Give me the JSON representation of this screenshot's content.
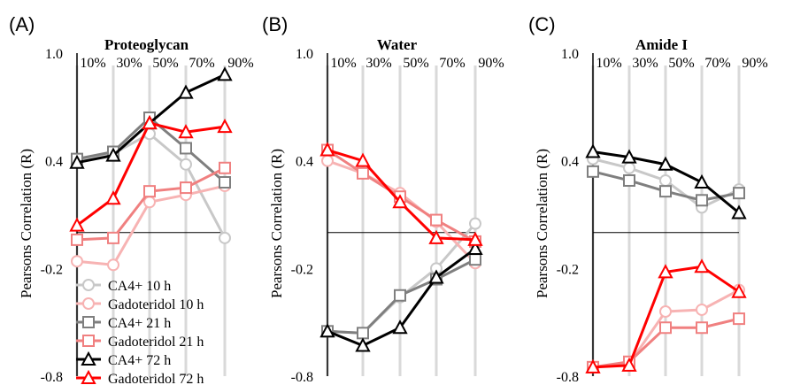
{
  "chart_data": [
    {
      "type": "line",
      "panel_label": "(A)",
      "title": "Proteoglycan",
      "ylabel": "Pearsons Correlation (R)",
      "ylim": [
        -0.8,
        1.0
      ],
      "yticks": [
        "1.0",
        "0.4",
        "-0.2",
        "-0.8"
      ],
      "xlabels": [
        "10%",
        "30%",
        "50%",
        "70%",
        "90%"
      ],
      "grid_vertical": true,
      "series": [
        {
          "name": "CA4+ 10 h",
          "values": [
            0.4,
            0.44,
            0.55,
            0.38,
            -0.03
          ]
        },
        {
          "name": "Gadoteridol 10 h",
          "values": [
            -0.16,
            -0.18,
            0.17,
            0.21,
            0.26
          ]
        },
        {
          "name": "CA4+ 21 h",
          "values": [
            0.41,
            0.45,
            0.64,
            0.47,
            0.28
          ]
        },
        {
          "name": "Gadoteridol 21 h",
          "values": [
            -0.04,
            -0.03,
            0.23,
            0.25,
            0.36
          ]
        },
        {
          "name": "CA4+ 72 h",
          "values": [
            0.39,
            0.43,
            0.61,
            0.78,
            0.88
          ]
        },
        {
          "name": "Gadoteridol 72 h",
          "values": [
            0.04,
            0.19,
            0.61,
            0.56,
            0.59
          ]
        }
      ]
    },
    {
      "type": "line",
      "panel_label": "(B)",
      "title": "Water",
      "ylabel": "Pearsons Correlation (R)",
      "ylim": [
        -0.8,
        1.0
      ],
      "yticks": [
        "1.0",
        "0.4",
        "-0.2",
        "-0.8"
      ],
      "xlabels": [
        "10%",
        "30%",
        "50%",
        "70%",
        "90%"
      ],
      "grid_vertical": true,
      "series": [
        {
          "name": "CA4+ 10 h",
          "values": [
            -0.55,
            -0.56,
            -0.36,
            -0.2,
            0.05
          ]
        },
        {
          "name": "Gadoteridol 10 h",
          "values": [
            0.4,
            0.33,
            0.22,
            0.06,
            -0.17
          ]
        },
        {
          "name": "CA4+ 21 h",
          "values": [
            -0.55,
            -0.56,
            -0.35,
            -0.26,
            -0.15
          ]
        },
        {
          "name": "Gadoteridol 21 h",
          "values": [
            0.46,
            0.33,
            0.2,
            0.07,
            -0.05
          ]
        },
        {
          "name": "CA4+ 72 h",
          "values": [
            -0.55,
            -0.63,
            -0.53,
            -0.25,
            -0.09
          ]
        },
        {
          "name": "Gadoteridol 72 h",
          "values": [
            0.46,
            0.4,
            0.17,
            -0.03,
            -0.04
          ]
        }
      ]
    },
    {
      "type": "line",
      "panel_label": "(C)",
      "title": "Amide I",
      "ylabel": "Pearsons Correlation (R)",
      "ylim": [
        -0.8,
        1.0
      ],
      "yticks": [
        "1.0",
        "0.4",
        "-0.2",
        "-0.8"
      ],
      "xlabels": [
        "10%",
        "30%",
        "50%",
        "70%",
        "90%"
      ],
      "grid_vertical": true,
      "series": [
        {
          "name": "CA4+ 10 h",
          "values": [
            0.41,
            0.36,
            0.29,
            0.14,
            0.24
          ]
        },
        {
          "name": "Gadoteridol 10 h",
          "values": [
            -0.75,
            -0.73,
            -0.44,
            -0.43,
            -0.32
          ]
        },
        {
          "name": "CA4+ 21 h",
          "values": [
            0.34,
            0.29,
            0.23,
            0.18,
            0.22
          ]
        },
        {
          "name": "Gadoteridol 21 h",
          "values": [
            -0.75,
            -0.72,
            -0.53,
            -0.53,
            -0.48
          ]
        },
        {
          "name": "CA4+ 72 h",
          "values": [
            0.45,
            0.42,
            0.38,
            0.28,
            0.11
          ]
        },
        {
          "name": "Gadoteridol 72 h",
          "values": [
            -0.75,
            -0.74,
            -0.22,
            -0.19,
            -0.33
          ]
        }
      ]
    }
  ],
  "legend": {
    "placement": "bottom-left of panel A",
    "entries": [
      "CA4+ 10 h",
      "Gadoteridol 10 h",
      "CA4+ 21 h",
      "Gadoteridol 21 h",
      "CA4+ 72 h",
      "Gadoteridol 72 h"
    ]
  },
  "series_styles": [
    {
      "color": "#c8c8c8",
      "marker": "circle",
      "filled": false
    },
    {
      "color": "#f7b3b3",
      "marker": "circle",
      "filled": false
    },
    {
      "color": "#7f7f7f",
      "marker": "square",
      "filled": false
    },
    {
      "color": "#f08080",
      "marker": "square",
      "filled": false
    },
    {
      "color": "#000000",
      "marker": "triangle",
      "filled": false
    },
    {
      "color": "#ff0000",
      "marker": "triangle",
      "filled": false
    }
  ]
}
